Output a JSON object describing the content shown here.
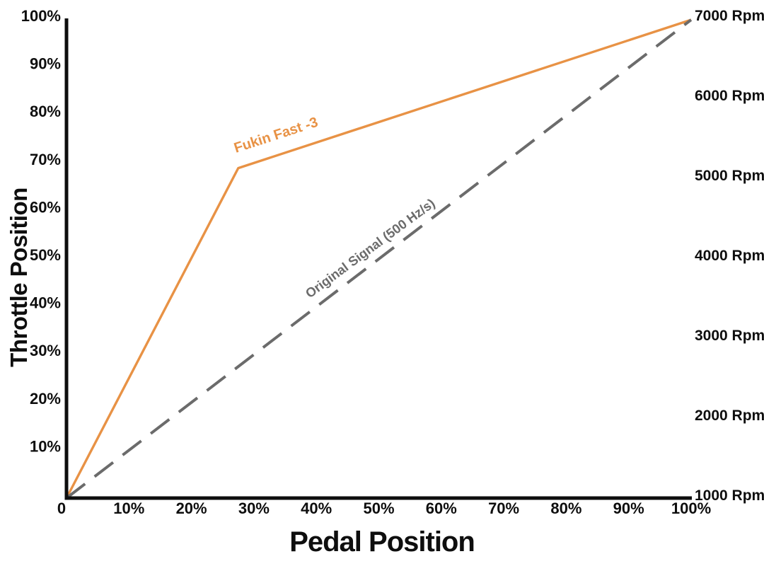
{
  "chart_data": {
    "type": "line",
    "title": "",
    "xlabel": "Pedal Position",
    "ylabel": "Throttle Position",
    "xlim": [
      0,
      100
    ],
    "ylim": [
      0,
      100
    ],
    "grid": false,
    "legend": "inline-labels",
    "x_tick_labels": [
      "0",
      "10%",
      "20%",
      "30%",
      "40%",
      "50%",
      "60%",
      "70%",
      "80%",
      "90%",
      "100%"
    ],
    "x_tick_values": [
      0,
      10,
      20,
      30,
      40,
      50,
      60,
      70,
      80,
      90,
      100
    ],
    "y_left_tick_labels": [
      "100%",
      "90%",
      "80%",
      "70%",
      "60%",
      "50%",
      "40%",
      "30%",
      "20%",
      "10%"
    ],
    "y_left_tick_values": [
      100,
      90,
      80,
      70,
      60,
      50,
      40,
      30,
      20,
      10
    ],
    "y_right_tick_labels": [
      "7000 Rpm",
      "6000 Rpm",
      "5000 Rpm",
      "4000 Rpm",
      "3000 Rpm",
      "2000 Rpm",
      "1000 Rpm"
    ],
    "right_axis": {
      "unit": "Rpm",
      "min": 1000,
      "max": 7000,
      "step": 1000
    },
    "series": [
      {
        "name": "Fukin Fast -3",
        "color": "#E89245",
        "line_style": "solid",
        "points": [
          [
            0,
            0
          ],
          [
            27.5,
            69
          ],
          [
            100,
            100
          ]
        ]
      },
      {
        "name": "Original Signal (500 Hz/s)",
        "color": "#6B6B6B",
        "line_style": "dashed",
        "points": [
          [
            0,
            0
          ],
          [
            100,
            100
          ]
        ]
      }
    ],
    "colors": {
      "axis": "#0e0e0e",
      "text": "#0e0e0e",
      "background": "#ffffff"
    }
  }
}
